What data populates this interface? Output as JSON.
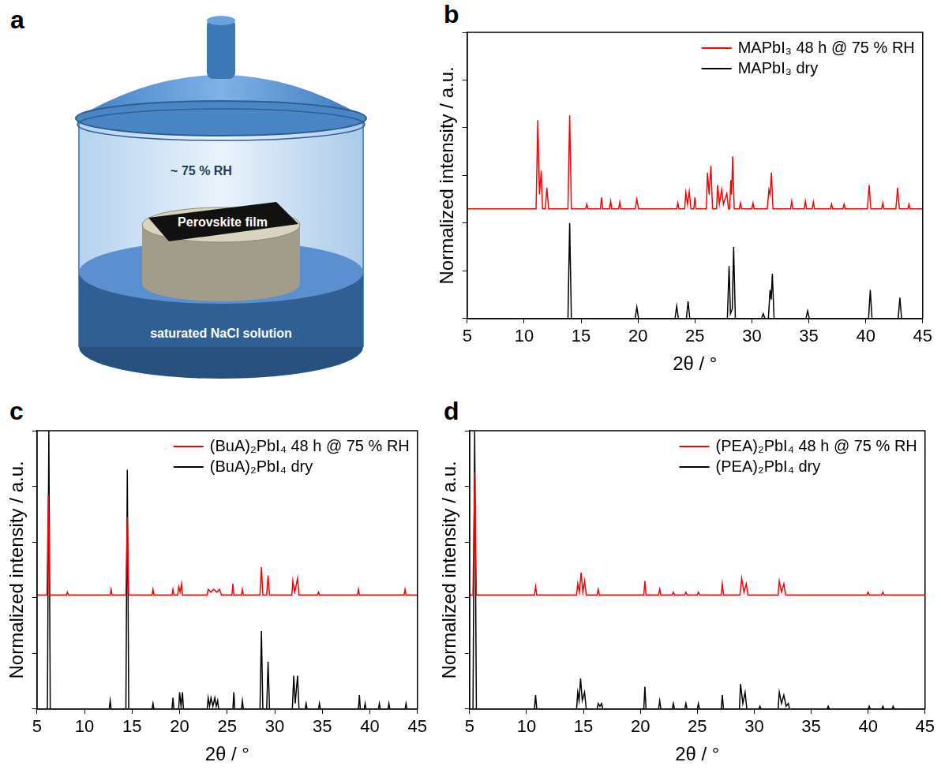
{
  "diagram": {
    "panel": "a",
    "texts": {
      "humidity": "~ 75 % RH",
      "sample": "Perovskite film",
      "solution": "saturated NaCl solution"
    }
  },
  "chart_data": [
    {
      "panel": "b",
      "type": "line",
      "x_label": "2θ / °",
      "y_label": "Normalized intensity / a.u.",
      "xlim": [
        5,
        45
      ],
      "xticks": [
        5,
        10,
        15,
        20,
        25,
        30,
        35,
        40,
        45
      ],
      "ylim": [
        0,
        3
      ],
      "yticks": [
        0,
        0.5,
        1,
        1.5,
        2,
        2.5,
        3
      ],
      "tick_labels": "x",
      "grid": false,
      "legend": "upper right",
      "series": [
        {
          "name": "MAPbI₃ 48 h @ 75 % RH",
          "color": "#ff0000",
          "x": [
            5,
            11.05,
            11.2,
            11.35,
            11.5,
            11.62,
            11.85,
            12,
            12.15,
            13.85,
            14,
            14.15,
            15.4,
            15.5,
            15.6,
            16.7,
            16.8,
            16.9,
            17.5,
            17.6,
            17.7,
            18.3,
            18.4,
            18.5,
            19.75,
            19.9,
            20.05,
            23.4,
            23.5,
            23.6,
            24.1,
            24.2,
            24.35,
            24.5,
            24.65,
            24.9,
            25,
            25.1,
            26,
            26.1,
            26.25,
            26.4,
            26.55,
            26.9,
            27,
            27.15,
            27.35,
            27.5,
            27.8,
            27.95,
            28.05,
            28.15,
            28.22,
            28.32,
            28.45,
            28.9,
            29,
            29.1,
            30,
            30.1,
            30.2,
            31.35,
            31.5,
            31.6,
            31.72,
            31.85,
            33.4,
            33.5,
            33.6,
            34.6,
            34.7,
            34.8,
            35.3,
            35.4,
            35.5,
            36.9,
            37,
            37.1,
            38,
            38.1,
            38.2,
            40.15,
            40.3,
            40.45,
            41.4,
            41.5,
            41.6,
            42.65,
            42.8,
            42.95,
            43.7,
            43.8,
            43.9,
            45
          ],
          "values": [
            1.15,
            1.15,
            2.08,
            1.3,
            1.55,
            1.15,
            1.15,
            1.37,
            1.15,
            1.15,
            2.13,
            1.15,
            1.15,
            1.2,
            1.15,
            1.15,
            1.27,
            1.15,
            1.15,
            1.23,
            1.15,
            1.15,
            1.22,
            1.15,
            1.15,
            1.25,
            1.15,
            1.15,
            1.21,
            1.15,
            1.15,
            1.32,
            1.2,
            1.33,
            1.15,
            1.15,
            1.27,
            1.15,
            1.15,
            1.53,
            1.3,
            1.6,
            1.15,
            1.15,
            1.4,
            1.2,
            1.35,
            1.2,
            1.31,
            1.15,
            1.15,
            1.45,
            1.3,
            1.7,
            1.15,
            1.15,
            1.21,
            1.15,
            1.15,
            1.21,
            1.15,
            1.15,
            1.35,
            1.3,
            1.53,
            1.15,
            1.15,
            1.23,
            1.15,
            1.15,
            1.23,
            1.15,
            1.15,
            1.22,
            1.15,
            1.15,
            1.2,
            1.15,
            1.15,
            1.2,
            1.15,
            1.15,
            1.4,
            1.15,
            1.15,
            1.21,
            1.15,
            1.15,
            1.37,
            1.15,
            1.15,
            1.2,
            1.15,
            1.15
          ]
        },
        {
          "name": "MAPbI₃ dry",
          "color": "#000000",
          "x": [
            5,
            13.85,
            14,
            14.15,
            19.75,
            19.9,
            20.05,
            23.25,
            23.4,
            23.55,
            24.25,
            24.4,
            24.55,
            27.85,
            28,
            28.12,
            28.28,
            28.4,
            28.55,
            30.85,
            31,
            31.15,
            31.45,
            31.6,
            31.7,
            31.8,
            31.95,
            34.75,
            34.9,
            35.05,
            40.25,
            40.4,
            40.55,
            42.85,
            43,
            43.15,
            45
          ],
          "values": [
            0,
            0,
            1,
            0,
            0,
            0.12,
            0,
            0,
            0.13,
            0,
            0,
            0.18,
            0,
            0,
            0.55,
            0.05,
            0.1,
            0.75,
            0,
            0,
            0.05,
            0,
            0,
            0.3,
            0.2,
            0.47,
            0,
            0,
            0.08,
            0,
            0,
            0.3,
            0,
            0,
            0.22,
            0,
            0
          ]
        }
      ]
    },
    {
      "panel": "c",
      "type": "line",
      "x_label": "2θ / °",
      "y_label": "Normalized intensity / a.u.",
      "xlim": [
        5,
        45
      ],
      "xticks": [
        5,
        10,
        15,
        20,
        25,
        30,
        35,
        40,
        45
      ],
      "ylim": [
        0,
        1
      ],
      "yticks": [
        0,
        0.2,
        0.4,
        0.6,
        0.8,
        1
      ],
      "tick_labels": "x",
      "grid": false,
      "legend": "upper right",
      "series": [
        {
          "name": "(BuA)₂PbI₄ 48 h @ 75 % RH",
          "color": "#ff0000",
          "x": [
            5,
            6.05,
            6.2,
            6.35,
            8.1,
            8.2,
            8.3,
            12.7,
            12.8,
            12.9,
            14.35,
            14.5,
            14.65,
            17.1,
            17.2,
            17.3,
            19.2,
            19.3,
            19.4,
            19.8,
            19.9,
            20.05,
            20.2,
            20.3,
            22.9,
            23,
            23.3,
            23.6,
            23.9,
            24.2,
            24.4,
            25.5,
            25.6,
            25.7,
            26.5,
            26.6,
            26.7,
            28.45,
            28.6,
            28.75,
            29.15,
            29.3,
            29.45,
            31.8,
            31.9,
            32.1,
            32.4,
            32.55,
            34.5,
            34.6,
            34.7,
            38.7,
            38.8,
            38.9,
            43.6,
            43.7,
            43.8,
            45
          ],
          "values": [
            0.41,
            0.41,
            0.77,
            0.41,
            0.41,
            0.42,
            0.41,
            0.41,
            0.43,
            0.41,
            0.41,
            0.69,
            0.41,
            0.41,
            0.43,
            0.41,
            0.41,
            0.43,
            0.41,
            0.41,
            0.44,
            0.42,
            0.45,
            0.41,
            0.41,
            0.43,
            0.42,
            0.43,
            0.42,
            0.43,
            0.41,
            0.41,
            0.45,
            0.41,
            0.41,
            0.43,
            0.41,
            0.41,
            0.51,
            0.41,
            0.41,
            0.48,
            0.41,
            0.41,
            0.46,
            0.42,
            0.47,
            0.41,
            0.41,
            0.42,
            0.41,
            0.41,
            0.43,
            0.41,
            0.41,
            0.43,
            0.41,
            0.41
          ]
        },
        {
          "name": "(BuA)₂PbI₄ dry",
          "color": "#000000",
          "x": [
            5,
            6.1,
            6.25,
            6.4,
            12.6,
            12.7,
            12.8,
            14.35,
            14.5,
            14.65,
            17.1,
            17.2,
            17.3,
            19.2,
            19.3,
            19.4,
            19.9,
            20,
            20.15,
            20.3,
            20.4,
            22.9,
            23,
            23.15,
            23.3,
            23.5,
            23.7,
            23.85,
            24,
            24.1,
            25.6,
            25.7,
            25.8,
            26.5,
            26.6,
            26.7,
            28.45,
            28.6,
            28.75,
            29.15,
            29.3,
            29.45,
            31.85,
            32,
            32.15,
            32.4,
            32.55,
            33.2,
            33.3,
            33.4,
            34.6,
            34.7,
            34.8,
            38.8,
            38.9,
            39,
            39.4,
            39.5,
            39.6,
            40.9,
            41,
            41.1,
            41.9,
            42,
            42.1,
            43.7,
            43.8,
            43.9,
            45
          ],
          "values": [
            0,
            0,
            1,
            0,
            0,
            0.03,
            0,
            0,
            0.86,
            0,
            0,
            0.02,
            0,
            0,
            0.04,
            0,
            0,
            0.06,
            0.01,
            0.06,
            0,
            0,
            0.04,
            0.01,
            0.04,
            0.01,
            0.04,
            0.01,
            0.03,
            0,
            0,
            0.06,
            0,
            0,
            0.03,
            0,
            0,
            0.28,
            0,
            0,
            0.17,
            0,
            0,
            0.12,
            0.02,
            0.12,
            0,
            0,
            0.02,
            0,
            0,
            0.02,
            0,
            0,
            0.05,
            0,
            0,
            0.02,
            0,
            0,
            0.02,
            0,
            0,
            0.02,
            0,
            0,
            0.02,
            0,
            0
          ]
        }
      ]
    },
    {
      "panel": "d",
      "type": "line",
      "x_label": "2θ / °",
      "y_label": "Normalized intensity / a.u.",
      "xlim": [
        5,
        45
      ],
      "xticks": [
        5,
        10,
        15,
        20,
        25,
        30,
        35,
        40,
        45
      ],
      "ylim": [
        0,
        1
      ],
      "yticks": [
        0,
        0.2,
        0.4,
        0.6,
        0.8,
        1
      ],
      "tick_labels": "x",
      "grid": false,
      "legend": "upper right",
      "series": [
        {
          "name": "(PEA)₂PbI₄ 48 h @ 75 % RH",
          "color": "#ff0000",
          "x": [
            5,
            5.3,
            5.45,
            5.6,
            10.7,
            10.8,
            10.9,
            14.4,
            14.5,
            14.65,
            14.8,
            14.95,
            15.1,
            15.25,
            16.2,
            16.3,
            16.4,
            20.3,
            20.4,
            20.5,
            21.6,
            21.7,
            21.8,
            22.8,
            22.9,
            23,
            23.9,
            24,
            24.1,
            25,
            25.1,
            25.2,
            27.1,
            27.2,
            27.3,
            28.75,
            28.9,
            29.1,
            29.3,
            29.45,
            32.1,
            32.2,
            32.4,
            32.6,
            32.75,
            39.9,
            40,
            40.1,
            41.2,
            41.3,
            41.4,
            45
          ],
          "values": [
            0.41,
            0.41,
            0.85,
            0.41,
            0.41,
            0.44,
            0.41,
            0.41,
            0.45,
            0.42,
            0.49,
            0.42,
            0.46,
            0.41,
            0.41,
            0.43,
            0.41,
            0.41,
            0.46,
            0.41,
            0.41,
            0.43,
            0.41,
            0.41,
            0.42,
            0.41,
            0.41,
            0.42,
            0.41,
            0.41,
            0.42,
            0.41,
            0.41,
            0.45,
            0.41,
            0.41,
            0.47,
            0.42,
            0.45,
            0.41,
            0.41,
            0.46,
            0.42,
            0.45,
            0.41,
            0.41,
            0.42,
            0.41,
            0.41,
            0.42,
            0.41,
            0.41
          ]
        },
        {
          "name": "(PEA)₂PbI₄ dry",
          "color": "#000000",
          "x": [
            5,
            5.3,
            5.45,
            5.6,
            10.7,
            10.8,
            10.9,
            14.4,
            14.5,
            14.62,
            14.75,
            14.9,
            15.1,
            15.25,
            16.2,
            16.3,
            16.45,
            16.6,
            16.7,
            20.3,
            20.4,
            20.5,
            21.6,
            21.7,
            21.8,
            22.8,
            22.9,
            23,
            23.9,
            24,
            24.1,
            25,
            25.1,
            25.2,
            27.1,
            27.2,
            27.3,
            28.7,
            28.8,
            29,
            29.2,
            29.35,
            30.4,
            30.5,
            30.6,
            32.1,
            32.2,
            32.4,
            32.6,
            32.8,
            33,
            33.1,
            36.4,
            36.5,
            36.6,
            40,
            40.1,
            40.2,
            41.2,
            41.3,
            41.4,
            42.1,
            42.2,
            42.3,
            45
          ],
          "values": [
            0,
            0,
            1,
            0,
            0,
            0.05,
            0,
            0,
            0.06,
            0.03,
            0.11,
            0.03,
            0.06,
            0,
            0,
            0.02,
            0.01,
            0.02,
            0,
            0,
            0.08,
            0,
            0,
            0.03,
            0,
            0,
            0.02,
            0,
            0,
            0.02,
            0,
            0,
            0.02,
            0,
            0,
            0.05,
            0,
            0,
            0.09,
            0.02,
            0.06,
            0,
            0,
            0.01,
            0,
            0,
            0.06,
            0.02,
            0.05,
            0.01,
            0.02,
            0,
            0,
            0.01,
            0,
            0,
            0.01,
            0,
            0,
            0.01,
            0,
            0,
            0.01,
            0,
            0
          ]
        }
      ]
    }
  ]
}
